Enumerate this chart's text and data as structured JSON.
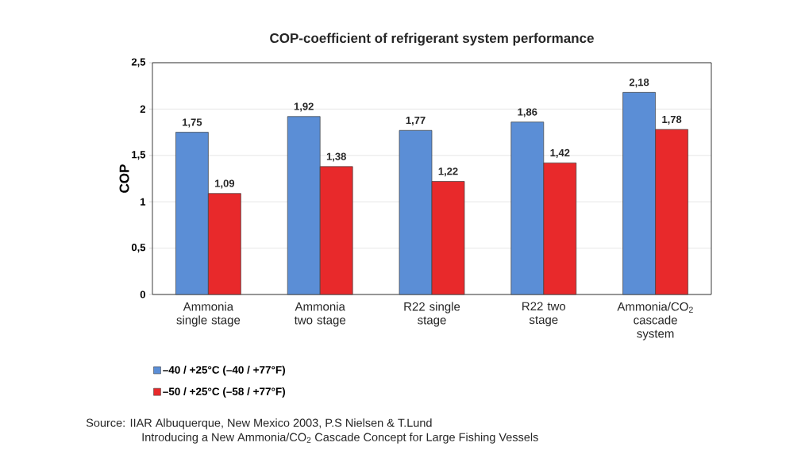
{
  "chart_data": {
    "type": "bar",
    "title": "COP-coefficient of refrigerant system performance",
    "ylabel": "COP",
    "categories": [
      "Ammonia single stage",
      "Ammonia two stage",
      "R22 single stage",
      "R22 two stage",
      "Ammonia/CO$_{2}$ cascade system"
    ],
    "series": [
      {
        "name": "–40 / +25°C (–40 / +77°F)",
        "color": "#5b8ed6",
        "values": [
          1.75,
          1.92,
          1.77,
          1.86,
          2.18
        ],
        "value_labels": [
          "1,75",
          "1,92",
          "1,77",
          "1,86",
          "2,18"
        ]
      },
      {
        "name": "–50 / +25°C (–58 / +77°F)",
        "color": "#e8292b",
        "values": [
          1.09,
          1.38,
          1.22,
          1.42,
          1.78
        ],
        "value_labels": [
          "1,09",
          "1,38",
          "1,22",
          "1,42",
          "1,78"
        ]
      }
    ],
    "ylim": [
      0,
      2.5
    ],
    "yticks": [
      0,
      {
        "value": 0.5,
        "label": "0,5"
      },
      1,
      {
        "value": 1.5,
        "label": "1,5"
      },
      2,
      {
        "value": 2.5,
        "label": "2,5"
      }
    ],
    "grid": "y",
    "legend": "bottom left",
    "annotations": [
      "Source: IIAR Albuquerque, New Mexico 2003, P.S Nielsen & T.Lund",
      "Introducing a New Ammonia/CO$_{2}$ Cascade Concept for Large Fishing Vessels"
    ]
  }
}
